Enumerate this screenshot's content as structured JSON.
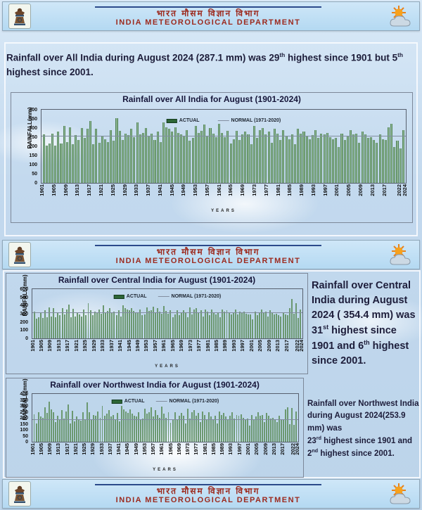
{
  "colors": {
    "header_text": "#9c2a1e",
    "statement_text": "#1d1d3a",
    "bar_green": "#2d6636",
    "bar_light": "#a9cbab",
    "normal_line": "#828ea0"
  },
  "header": {
    "title_hindi": "भारत मौसम विज्ञान विभाग",
    "title_english": "INDIA METEOROLOGICAL DEPARTMENT",
    "emblem_icon": "imd-emblem-icon",
    "weather_icon": "sun-cloud-icon"
  },
  "statements": {
    "all_india": {
      "s1": "Rainfall over All India during August 2024 (287.1 mm) was 29",
      "sup1": "th",
      "s2": " highest since 1901 but 5",
      "sup2": "th",
      "s3": " highest since 2001."
    },
    "central": {
      "s1": "Rainfall over Central India during August 2024 ( 354.4 mm) was 31",
      "sup1": "st",
      "s2": " highest since 1901 and 6",
      "sup2": "th",
      "s3": " highest since 2001."
    },
    "northwest": {
      "s1": "Rainfall over Northwest India during August 2024(253.9 mm) was",
      "s2": "23",
      "sup1": "rd",
      "s3": " highest since 1901 and 2",
      "sup2": "nd",
      "s4": " highest since 2001."
    }
  },
  "chart_data": [
    {
      "type": "bar",
      "title": "Rainfall over All India  for August (1901-2024)",
      "ylabel": "RAINFALL(mm)",
      "xlabel": "YEARS",
      "legend": [
        "ACTUAL",
        "NORMAL (1971-2020)"
      ],
      "x_start": 1901,
      "x_end": 2024,
      "x_tick_interval": 4,
      "x_extra_ticks": [
        2022,
        2024
      ],
      "ylim": [
        0,
        400
      ],
      "ytick_step": 50,
      "normal": 254,
      "values": [
        265,
        205,
        215,
        270,
        205,
        280,
        215,
        310,
        225,
        305,
        210,
        260,
        235,
        300,
        245,
        295,
        340,
        210,
        295,
        220,
        255,
        240,
        225,
        290,
        230,
        355,
        285,
        235,
        270,
        260,
        295,
        250,
        330,
        265,
        275,
        300,
        255,
        270,
        235,
        280,
        225,
        330,
        305,
        295,
        280,
        305,
        275,
        265,
        255,
        290,
        230,
        245,
        310,
        275,
        285,
        320,
        255,
        300,
        270,
        250,
        325,
        275,
        250,
        285,
        215,
        240,
        285,
        235,
        265,
        280,
        265,
        210,
        310,
        245,
        290,
        300,
        265,
        280,
        220,
        295,
        270,
        235,
        290,
        255,
        240,
        265,
        210,
        295,
        270,
        280,
        255,
        240,
        260,
        290,
        245,
        270,
        265,
        275,
        250,
        240,
        245,
        195,
        270,
        235,
        255,
        290,
        265,
        270,
        220,
        280,
        265,
        245,
        250,
        235,
        220,
        265,
        240,
        235,
        305,
        325,
        195,
        230,
        190,
        287
      ]
    },
    {
      "type": "bar",
      "title": "Rainfall over  Central India  for August  (1901-2024)",
      "ylabel": "RAINFALL(mm)",
      "xlabel": "YEARS",
      "legend": [
        "ACTUAL",
        "NORMAL (1971-2020)"
      ],
      "x_start": 1901,
      "x_end": 2024,
      "x_tick_interval": 4,
      "x_extra_ticks": [
        2022,
        2024
      ],
      "ylim": [
        0,
        600
      ],
      "ytick_step": 100,
      "normal": 305,
      "values": [
        330,
        240,
        260,
        320,
        250,
        340,
        260,
        380,
        270,
        370,
        255,
        315,
        285,
        365,
        295,
        355,
        410,
        255,
        360,
        265,
        310,
        290,
        270,
        350,
        280,
        430,
        345,
        285,
        325,
        315,
        355,
        300,
        400,
        320,
        335,
        365,
        310,
        325,
        285,
        340,
        270,
        400,
        370,
        355,
        340,
        370,
        335,
        320,
        310,
        350,
        280,
        295,
        375,
        335,
        345,
        390,
        310,
        365,
        325,
        300,
        395,
        335,
        300,
        345,
        260,
        290,
        345,
        285,
        320,
        340,
        320,
        255,
        375,
        295,
        350,
        365,
        320,
        340,
        265,
        355,
        325,
        285,
        350,
        310,
        290,
        320,
        255,
        355,
        325,
        340,
        310,
        290,
        315,
        350,
        295,
        325,
        320,
        330,
        300,
        290,
        295,
        235,
        325,
        285,
        310,
        350,
        320,
        325,
        265,
        340,
        320,
        295,
        300,
        285,
        265,
        320,
        290,
        285,
        370,
        480,
        300,
        430,
        250,
        354
      ]
    },
    {
      "type": "bar",
      "title": "Rainfall over Northwest India for August (1901-2024)",
      "ylabel": "RAINFALL(mm)",
      "xlabel": "YEARS",
      "legend": [
        "ACTUAL",
        "NORMAL (1971-2020)"
      ],
      "x_start": 1901,
      "x_end": 2024,
      "x_tick_interval": 4,
      "x_extra_ticks": [
        2022,
        2024
      ],
      "ylim": [
        0,
        400
      ],
      "ytick_step": 50,
      "normal": 185,
      "values": [
        230,
        155,
        250,
        210,
        200,
        290,
        240,
        335,
        270,
        250,
        165,
        215,
        185,
        265,
        195,
        255,
        310,
        155,
        260,
        170,
        210,
        190,
        175,
        250,
        180,
        330,
        245,
        185,
        225,
        215,
        255,
        200,
        300,
        220,
        235,
        265,
        210,
        225,
        185,
        240,
        170,
        300,
        270,
        255,
        240,
        270,
        235,
        220,
        210,
        250,
        180,
        195,
        275,
        235,
        245,
        290,
        210,
        265,
        225,
        200,
        295,
        235,
        200,
        245,
        160,
        190,
        245,
        185,
        220,
        240,
        220,
        155,
        275,
        195,
        250,
        265,
        220,
        240,
        165,
        255,
        225,
        185,
        250,
        210,
        190,
        220,
        155,
        255,
        225,
        240,
        210,
        190,
        215,
        250,
        195,
        225,
        220,
        230,
        200,
        190,
        195,
        135,
        225,
        185,
        210,
        250,
        220,
        225,
        165,
        240,
        220,
        195,
        200,
        185,
        165,
        220,
        190,
        185,
        270,
        290,
        150,
        280,
        140,
        254
      ]
    }
  ]
}
